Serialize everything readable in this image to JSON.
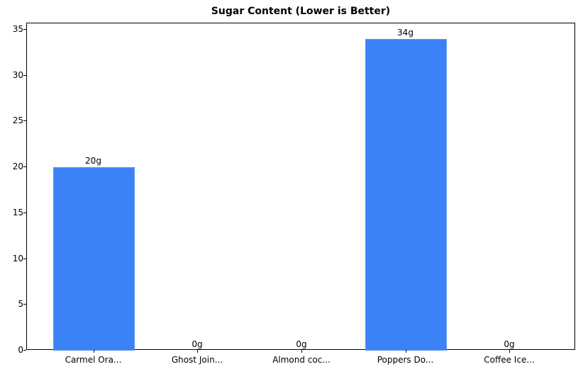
{
  "chart_data": {
    "type": "bar",
    "title": "Sugar Content (Lower is Better)",
    "xlabel": "",
    "ylabel": "",
    "categories": [
      "Carmel Ora...",
      "Ghost Join...",
      "Almond coc...",
      "Poppers Do...",
      "Coffee Ice..."
    ],
    "values": [
      20,
      0,
      0,
      34,
      0
    ],
    "data_labels": [
      "20g",
      "0g",
      "0g",
      "34g",
      "0g"
    ],
    "ylim": [
      0,
      35.7
    ],
    "yticks": [
      0,
      5,
      10,
      15,
      20,
      25,
      30,
      35
    ],
    "grid": false,
    "legend": null,
    "bar_color": "#3b82f6"
  }
}
